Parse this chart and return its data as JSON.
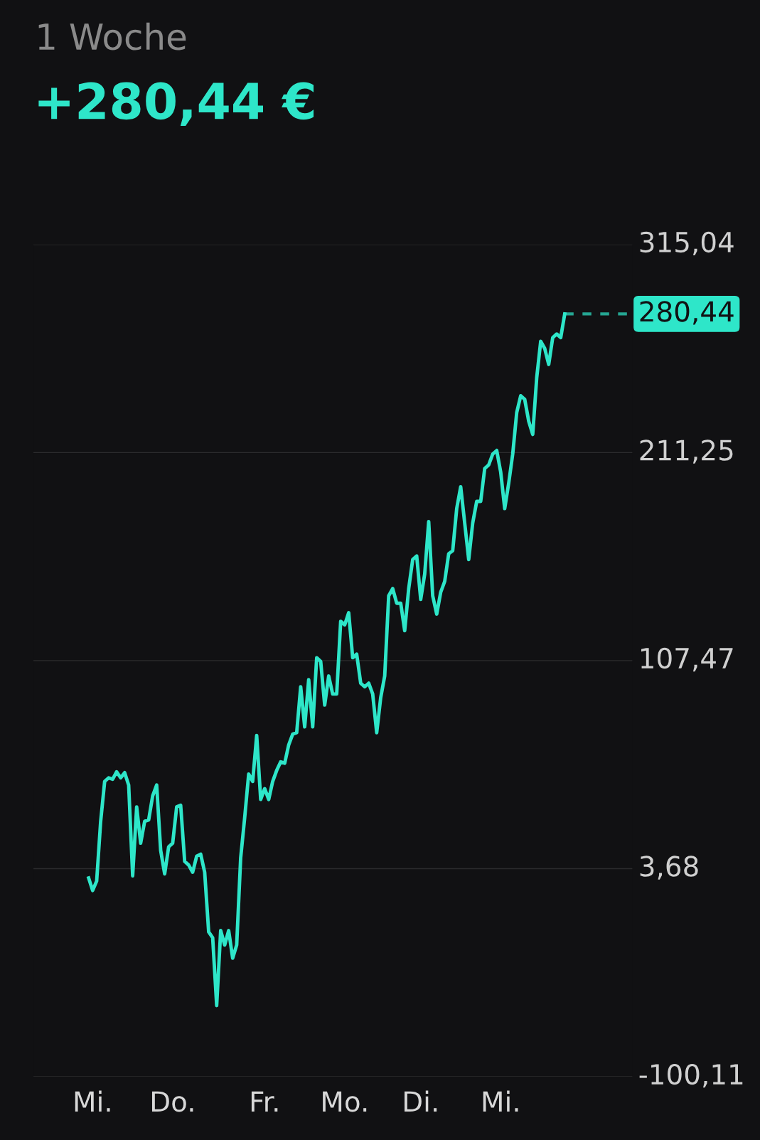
{
  "chart_data": {
    "type": "line",
    "title": "1 Woche",
    "subtitle": "+280,44 €",
    "categories": [
      null,
      "Mi.",
      null,
      null,
      null,
      null,
      null,
      null,
      null,
      null,
      null,
      null,
      null,
      null,
      null,
      null,
      null,
      null,
      null,
      null,
      null,
      "Do.",
      null,
      null,
      null,
      null,
      null,
      null,
      null,
      null,
      null,
      null,
      null,
      null,
      null,
      null,
      null,
      null,
      null,
      null,
      null,
      null,
      null,
      null,
      "Fr.",
      null,
      null,
      null,
      null,
      null,
      null,
      null,
      null,
      null,
      null,
      null,
      null,
      null,
      null,
      null,
      null,
      null,
      null,
      null,
      "Mo.",
      null,
      null,
      null,
      null,
      null,
      null,
      null,
      null,
      null,
      null,
      null,
      null,
      null,
      null,
      null,
      null,
      null,
      null,
      "Di.",
      null,
      null,
      null,
      null,
      null,
      null,
      null,
      null,
      null,
      null,
      null,
      null,
      null,
      null,
      null,
      null,
      null,
      null,
      null,
      "Mi.",
      null,
      null,
      null,
      null,
      null,
      null,
      null,
      null,
      null,
      null,
      null,
      null,
      null,
      null,
      null,
      null
    ],
    "series": [
      {
        "color": "#2ee6c9",
        "values": [
          -1.0,
          -7.2,
          -2.5,
          27.3,
          47.2,
          49.0,
          48.3,
          52.0,
          49.0,
          51.6,
          45.4,
          0.1,
          34.5,
          16.4,
          27.3,
          28.0,
          40.0,
          45.4,
          12.8,
          1.1,
          14.6,
          16.4,
          34.5,
          35.3,
          7.3,
          5.5,
          1.9,
          9.9,
          10.9,
          1.9,
          -27.9,
          -30.8,
          -64.6,
          -27.2,
          -34.4,
          -27.2,
          -41.0,
          -34.4,
          9.1,
          29.1,
          50.9,
          47.2,
          70.1,
          38.2,
          43.6,
          38.2,
          47.2,
          52.7,
          57.0,
          56.3,
          65.4,
          70.8,
          71.5,
          94.4,
          74.4,
          98.0,
          74.4,
          108.9,
          107.1,
          85.3,
          99.8,
          90.8,
          90.8,
          127.1,
          125.3,
          131.4,
          108.9,
          110.7,
          96.2,
          94.4,
          96.2,
          90.8,
          71.5,
          89.0,
          99.8,
          139.8,
          143.4,
          136.1,
          136.1,
          122.4,
          143.4,
          157.9,
          159.7,
          138.0,
          150.7,
          176.8,
          139.8,
          130.7,
          141.6,
          147.0,
          160.8,
          162.3,
          183.3,
          194.2,
          176.1,
          157.9,
          176.1,
          186.9,
          186.9,
          203.3,
          205.1,
          210.5,
          212.3,
          201.5,
          183.3,
          196.0,
          210.5,
          231.2,
          239.6,
          237.8,
          226.9,
          220.3,
          248.6,
          266.8,
          263.2,
          255.2,
          268.6,
          270.4,
          268.6,
          280.4
        ]
      }
    ],
    "ylim": [
      -100.11,
      315.04
    ],
    "yticks": [
      {
        "value": -100.11,
        "label": "-100,11"
      },
      {
        "value": 3.68,
        "label": "3,68"
      },
      {
        "value": 107.47,
        "label": "107,47"
      },
      {
        "value": 211.25,
        "label": "211,25"
      },
      {
        "value": 315.04,
        "label": "315,04"
      }
    ],
    "ref_lines": [
      {
        "axis": "y",
        "value": 280.44,
        "label": "280,44",
        "color": "#2ee6c9",
        "line_style": "dashed"
      }
    ],
    "grid": "y",
    "legend": false
  }
}
